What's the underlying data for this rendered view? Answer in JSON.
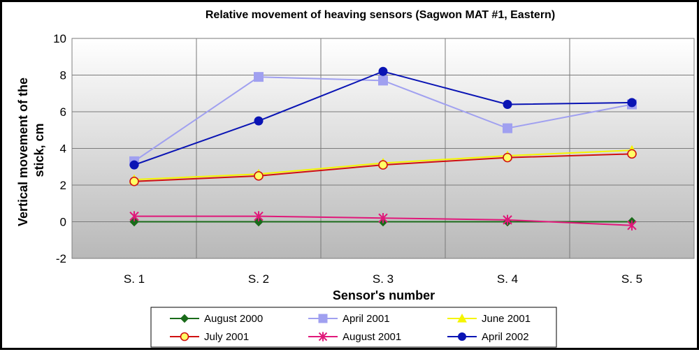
{
  "chart_data": {
    "type": "line",
    "title": "Relative movement of heaving sensors (Sagwon MAT #1, Eastern)",
    "xlabel": "Sensor's number",
    "ylabel": "Vertical movement of the stick, cm",
    "ylabel_lines": [
      "Vertical movement of the",
      "stick, cm"
    ],
    "categories": [
      "S. 1",
      "S. 2",
      "S. 3",
      "S. 4",
      "S. 5"
    ],
    "ylim": [
      -2,
      10
    ],
    "yticks": [
      -2,
      0,
      2,
      4,
      6,
      8,
      10
    ],
    "grid": true,
    "legend_position": "bottom",
    "series": [
      {
        "name": "August 2000",
        "values": [
          0,
          0,
          0,
          0,
          0
        ],
        "color": "#1a6b1a",
        "marker": "diamond"
      },
      {
        "name": "April 2001",
        "values": [
          3.3,
          7.9,
          7.7,
          5.1,
          6.4
        ],
        "color": "#a0a0f0",
        "marker": "square"
      },
      {
        "name": "June 2001",
        "values": [
          2.3,
          2.6,
          3.2,
          3.6,
          3.9
        ],
        "color": "#f5f500",
        "marker": "triangle"
      },
      {
        "name": "July 2001",
        "values": [
          2.2,
          2.5,
          3.1,
          3.5,
          3.7
        ],
        "color": "#d01010",
        "marker": "circle-open"
      },
      {
        "name": "August 2001",
        "values": [
          0.3,
          0.3,
          0.2,
          0.1,
          -0.2
        ],
        "color": "#e0187a",
        "marker": "star"
      },
      {
        "name": "April 2002",
        "values": [
          3.1,
          5.5,
          8.2,
          6.4,
          6.5
        ],
        "color": "#0a14b4",
        "marker": "circle"
      }
    ]
  }
}
